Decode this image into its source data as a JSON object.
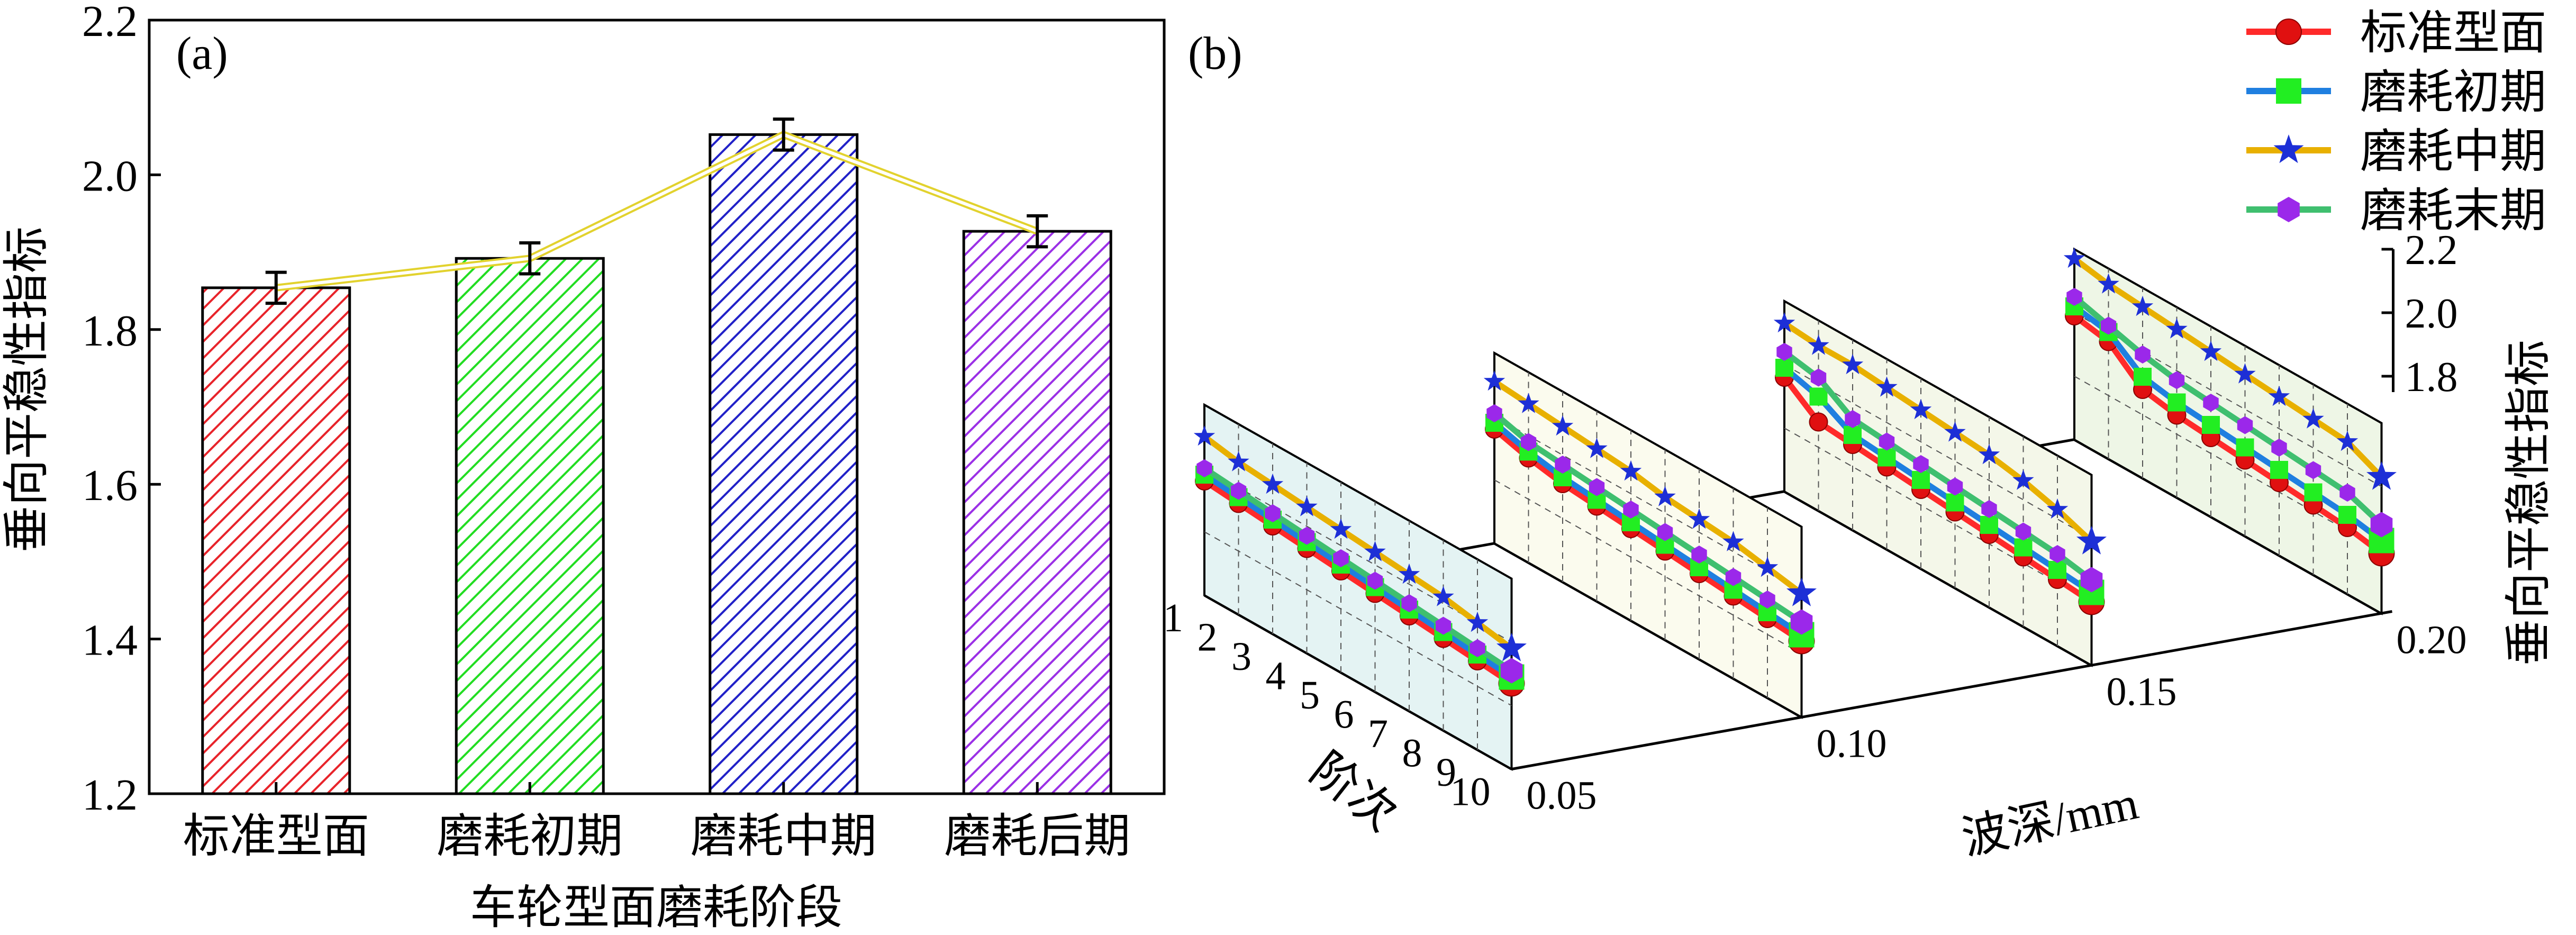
{
  "chart_data": [
    {
      "panel_label": "(a)",
      "type": "bar",
      "xlabel": "车轮型面磨耗阶段",
      "ylabel": "垂向平稳性指标",
      "ylim": [
        1.2,
        2.2
      ],
      "yticks": [
        "1.2",
        "1.4",
        "1.6",
        "1.8",
        "2.0",
        "2.2"
      ],
      "categories": [
        "标准型面",
        "磨耗初期",
        "磨耗中期",
        "磨耗后期"
      ],
      "values": [
        1.854,
        1.892,
        2.052,
        1.927
      ],
      "errors": [
        0.02,
        0.02,
        0.02,
        0.02
      ],
      "colors": [
        "#e8232a",
        "#22dd22",
        "#2121c8",
        "#9b30e6"
      ],
      "trend_line_color": "#e2d22e",
      "grid": false
    },
    {
      "panel_label": "(b)",
      "type": "line",
      "xlabel": "阶次",
      "ylabel": "垂向平稳性指标",
      "depth_label": "波深/mm",
      "x": [
        1,
        2,
        3,
        4,
        5,
        6,
        7,
        8,
        9,
        10
      ],
      "xticks": [
        "1",
        "2",
        "3",
        "4",
        "5",
        "6",
        "7",
        "8",
        "9",
        "10"
      ],
      "depth_ticks": [
        "0.05",
        "0.10",
        "0.15",
        "0.20"
      ],
      "zlim": [
        1.8,
        2.2
      ],
      "zticks": [
        "1.8",
        "2.0",
        "2.2"
      ],
      "legend_position": "top-right",
      "grid": true,
      "series_colors": [
        "#ff2a2a",
        "#1f7fe0",
        "#e8b000",
        "#3fbf6f"
      ],
      "marker_colors": [
        "#e01010",
        "#22ee22",
        "#1d2fd6",
        "#9b28ea"
      ],
      "pane_colors": [
        "#e4f3f3",
        "#fbfbee",
        "#f4f7e9",
        "#eef6e6"
      ],
      "series": [
        {
          "name": "标准型面",
          "marker": "circle",
          "values": [
            [
              1.96,
              1.95,
              1.94,
              1.93,
              1.92,
              1.91,
              1.9,
              1.89,
              1.88,
              1.87
            ],
            [
              1.96,
              1.93,
              1.91,
              1.9,
              1.89,
              1.88,
              1.87,
              1.86,
              1.85,
              1.84
            ],
            [
              1.96,
              1.88,
              1.87,
              1.86,
              1.85,
              1.84,
              1.83,
              1.82,
              1.81,
              1.8
            ],
            [
              1.99,
              1.97,
              1.88,
              1.86,
              1.85,
              1.84,
              1.83,
              1.82,
              1.81,
              1.79
            ]
          ]
        },
        {
          "name": "磨耗初期",
          "marker": "square",
          "values": [
            [
              1.98,
              1.97,
              1.96,
              1.95,
              1.94,
              1.93,
              1.92,
              1.91,
              1.9,
              1.89
            ],
            [
              1.98,
              1.95,
              1.93,
              1.92,
              1.91,
              1.9,
              1.89,
              1.88,
              1.87,
              1.86
            ],
            [
              1.99,
              1.96,
              1.9,
              1.89,
              1.88,
              1.87,
              1.86,
              1.85,
              1.84,
              1.83
            ],
            [
              2.02,
              2.0,
              1.92,
              1.9,
              1.89,
              1.88,
              1.87,
              1.86,
              1.85,
              1.83
            ]
          ]
        },
        {
          "name": "磨耗中期",
          "marker": "star",
          "values": [
            [
              2.1,
              2.08,
              2.07,
              2.06,
              2.05,
              2.04,
              2.03,
              2.02,
              2.0,
              1.98
            ],
            [
              2.11,
              2.1,
              2.09,
              2.08,
              2.07,
              2.05,
              2.04,
              2.03,
              2.01,
              1.99
            ],
            [
              2.13,
              2.12,
              2.12,
              2.11,
              2.1,
              2.09,
              2.08,
              2.06,
              2.03,
              1.99
            ],
            [
              2.17,
              2.15,
              2.14,
              2.13,
              2.12,
              2.11,
              2.1,
              2.09,
              2.08,
              2.03
            ]
          ]
        },
        {
          "name": "磨耗末期",
          "marker": "hexagon",
          "values": [
            [
              2.0,
              1.99,
              1.98,
              1.97,
              1.96,
              1.95,
              1.94,
              1.93,
              1.92,
              1.91
            ],
            [
              2.01,
              1.98,
              1.97,
              1.96,
              1.95,
              1.94,
              1.93,
              1.92,
              1.91,
              1.9
            ],
            [
              2.04,
              2.02,
              1.95,
              1.94,
              1.93,
              1.92,
              1.91,
              1.9,
              1.89,
              1.87
            ],
            [
              2.05,
              2.02,
              1.99,
              1.97,
              1.96,
              1.95,
              1.94,
              1.93,
              1.92,
              1.88
            ]
          ]
        }
      ]
    }
  ]
}
